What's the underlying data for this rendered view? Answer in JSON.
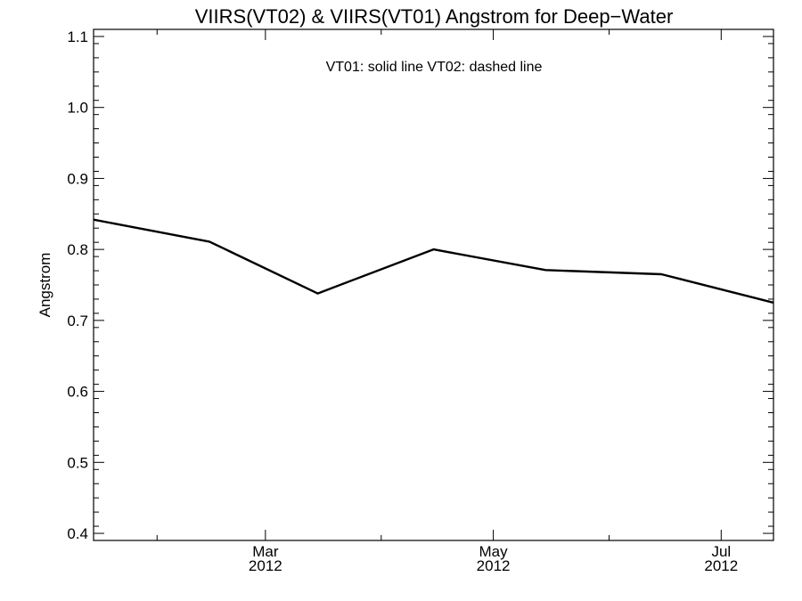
{
  "chart_data": {
    "type": "line",
    "title": "VIIRS(VT02) & VIIRS(VT01)  Angstrom for Deep−Water",
    "annotation": "VT01: solid line   VT02: dashed line",
    "ylabel": "Angstrom",
    "xlabel": "",
    "ylim": [
      0.39,
      1.11
    ],
    "yticks": [
      "0.4",
      "0.5",
      "0.6",
      "0.7",
      "0.8",
      "0.9",
      "1.0",
      "1.1"
    ],
    "ytick_values": [
      0.4,
      0.5,
      0.6,
      0.7,
      0.8,
      0.9,
      1.0,
      1.1
    ],
    "xlim": [
      "2012-01-15",
      "2012-07-15"
    ],
    "xticks": [
      {
        "month": "Mar",
        "year": "2012",
        "date": "2012-03-01"
      },
      {
        "month": "May",
        "year": "2012",
        "date": "2012-05-01"
      },
      {
        "month": "Jul",
        "year": "2012",
        "date": "2012-07-01"
      }
    ],
    "xminor_dates": [
      "2012-02-01",
      "2012-04-01",
      "2012-06-01"
    ],
    "grid": false,
    "series": [
      {
        "name": "VT01",
        "style": "solid",
        "color": "#000000",
        "points": [
          {
            "x": "2012-01-15",
            "y": 0.842
          },
          {
            "x": "2012-02-15",
            "y": 0.811
          },
          {
            "x": "2012-03-15",
            "y": 0.738
          },
          {
            "x": "2012-04-15",
            "y": 0.8
          },
          {
            "x": "2012-05-15",
            "y": 0.771
          },
          {
            "x": "2012-06-15",
            "y": 0.765
          },
          {
            "x": "2012-07-15",
            "y": 0.725
          }
        ]
      }
    ]
  }
}
